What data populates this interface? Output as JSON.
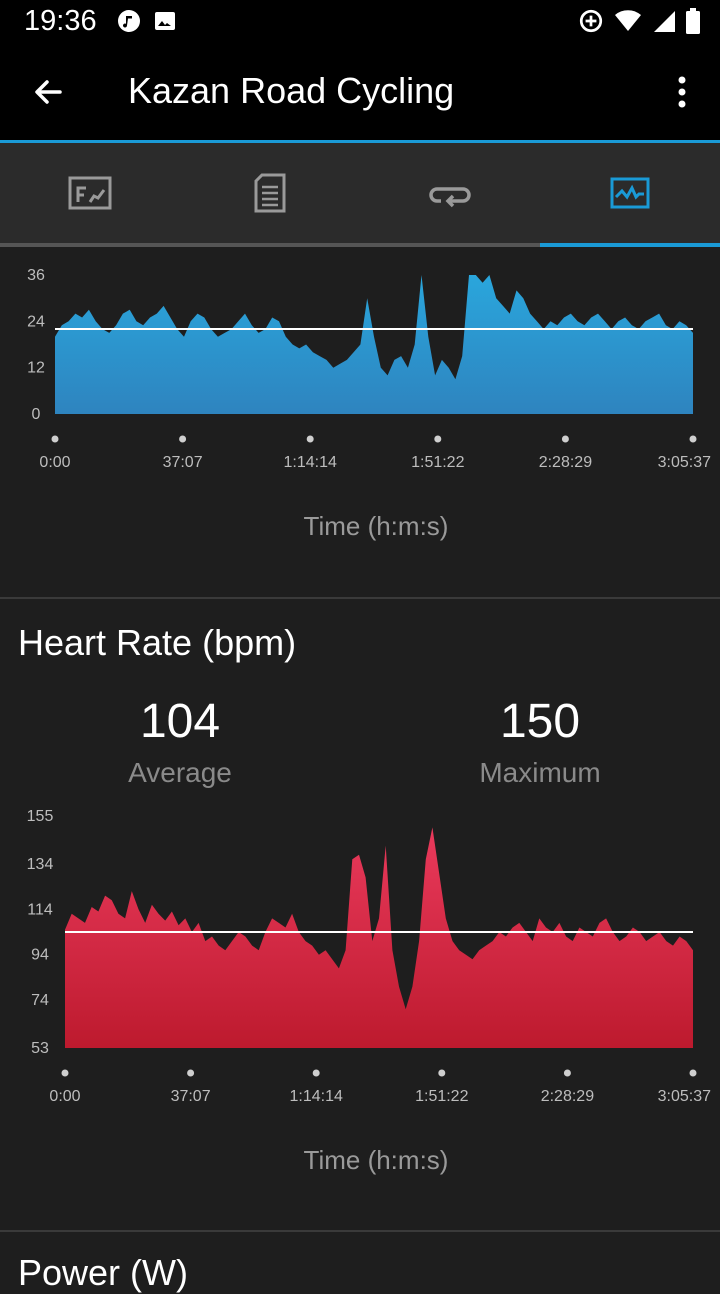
{
  "status_bar": {
    "time": "19:36",
    "icons": [
      "music-note-icon",
      "image-icon",
      "data-saver-icon",
      "wifi-icon",
      "signal-icon",
      "battery-icon"
    ]
  },
  "app_bar": {
    "title": "Kazan Road Cycling",
    "back_icon": "arrow-left-icon",
    "menu_icon": "more-vertical-icon"
  },
  "tabs": [
    {
      "icon": "stats-chart-icon",
      "active": false
    },
    {
      "icon": "document-icon",
      "active": false
    },
    {
      "icon": "laps-icon",
      "active": false
    },
    {
      "icon": "activity-graph-icon",
      "active": true
    }
  ],
  "colors": {
    "accent": "#1a9ad6",
    "speed_fill_top": "#2aa6dc",
    "speed_fill_bottom": "#2e84bf",
    "hr_fill_top": "#ea3a5c",
    "hr_fill_bottom": "#bd1a2e",
    "avg_line": "#ffffff"
  },
  "chart_data": [
    {
      "type": "area",
      "yticks": [
        "0",
        "12",
        "24",
        "36"
      ],
      "ylim": [
        0,
        36
      ],
      "xticks": [
        "0:00",
        "37:07",
        "1:14:14",
        "1:51:22",
        "2:28:29",
        "3:05:37"
      ],
      "xlabel": "Time (h:m:s)",
      "average": 22,
      "series": [
        {
          "values": [
            20,
            23,
            24,
            26,
            25,
            27,
            24,
            22,
            21,
            23,
            26,
            27,
            24,
            23,
            25,
            26,
            28,
            25,
            22,
            20,
            24,
            26,
            25,
            22,
            20,
            21,
            22,
            24,
            26,
            23,
            21,
            22,
            25,
            24,
            20,
            18,
            17,
            18,
            16,
            15,
            14,
            12,
            13,
            14,
            16,
            18,
            30,
            20,
            12,
            10,
            14,
            15,
            12,
            18,
            40,
            20,
            10,
            14,
            12,
            9,
            15,
            36,
            40,
            34,
            38,
            30,
            28,
            26,
            32,
            30,
            26,
            24,
            22,
            24,
            23,
            25,
            26,
            24,
            23,
            25,
            26,
            24,
            22,
            24,
            25,
            23,
            22,
            24,
            25,
            26,
            23,
            22,
            24,
            23,
            21
          ]
        }
      ]
    },
    {
      "type": "area",
      "title": "Heart Rate (bpm)",
      "yticks": [
        "53",
        "74",
        "94",
        "114",
        "134",
        "155"
      ],
      "ylim": [
        53,
        155
      ],
      "xticks": [
        "0:00",
        "37:07",
        "1:14:14",
        "1:51:22",
        "2:28:29",
        "3:05:37"
      ],
      "xlabel": "Time (h:m:s)",
      "average": 104,
      "maximum": 150,
      "series": [
        {
          "values": [
            105,
            112,
            110,
            108,
            115,
            113,
            120,
            118,
            112,
            110,
            122,
            114,
            108,
            116,
            112,
            109,
            113,
            107,
            110,
            104,
            108,
            100,
            102,
            98,
            96,
            100,
            104,
            102,
            98,
            96,
            104,
            110,
            108,
            106,
            112,
            104,
            100,
            98,
            94,
            96,
            92,
            88,
            96,
            136,
            138,
            128,
            100,
            110,
            142,
            96,
            80,
            70,
            80,
            100,
            136,
            150,
            130,
            110,
            100,
            96,
            94,
            92,
            96,
            98,
            100,
            104,
            102,
            106,
            108,
            104,
            100,
            110,
            106,
            104,
            108,
            102,
            100,
            106,
            104,
            102,
            108,
            110,
            104,
            100,
            102,
            106,
            104,
            100,
            102,
            104,
            100,
            98,
            102,
            100,
            96
          ]
        }
      ],
      "stats": {
        "average_value": "104",
        "average_label": "Average",
        "maximum_value": "150",
        "maximum_label": "Maximum"
      }
    }
  ],
  "next_section_title": "Power (W)"
}
